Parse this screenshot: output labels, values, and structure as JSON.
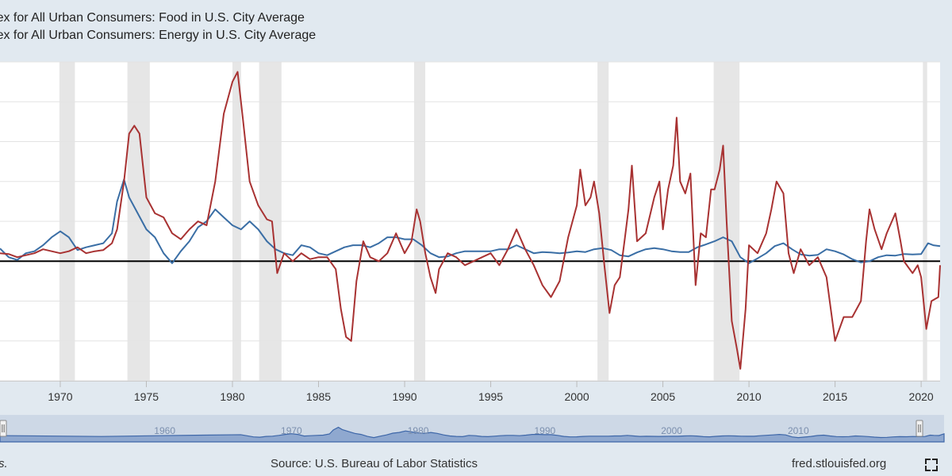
{
  "legend": {
    "food": "ce Index for All Urban Consumers: Food in U.S. City Average",
    "energy": "ce Index for All Urban Consumers: Energy in U.S. City Average"
  },
  "footer": {
    "left_text": "ions.",
    "source": "Source: U.S. Bureau of Labor Statistics",
    "site": "fred.stlouisfed.org"
  },
  "colors": {
    "food": "#3a6ea5",
    "energy": "#a83232",
    "recession": "#e6e6e6",
    "zero_line": "#000000",
    "navigator_fill": "#8fa8cf",
    "navigator_line": "#3d66a8"
  },
  "icons": {
    "fullscreen": "fullscreen-icon"
  },
  "chart_data": {
    "type": "line",
    "x_ticks": [
      1970,
      1975,
      1980,
      1985,
      1990,
      1995,
      2000,
      2005,
      2010,
      2015,
      2020
    ],
    "navigator_ticks": [
      "1960",
      "1970",
      "1980",
      "1990",
      "2000",
      "2010"
    ],
    "xlim": [
      1966.5,
      2021.1
    ],
    "grid": true,
    "recessions": [
      [
        1969.95,
        1970.85
      ],
      [
        1973.9,
        1975.2
      ],
      [
        1980.0,
        1980.5
      ],
      [
        1981.55,
        1982.85
      ],
      [
        1990.55,
        1991.2
      ],
      [
        2001.2,
        2001.85
      ],
      [
        2007.95,
        2009.45
      ],
      [
        2020.1,
        2020.35
      ]
    ],
    "series": [
      {
        "name": "Food",
        "points": [
          [
            1966.5,
            3.2
          ],
          [
            1967.0,
            1.0
          ],
          [
            1967.5,
            0.3
          ],
          [
            1968.0,
            2.0
          ],
          [
            1968.5,
            2.5
          ],
          [
            1969.0,
            4.0
          ],
          [
            1969.5,
            6.0
          ],
          [
            1970.0,
            7.5
          ],
          [
            1970.5,
            6.0
          ],
          [
            1971.0,
            2.8
          ],
          [
            1971.5,
            3.5
          ],
          [
            1972.0,
            4.0
          ],
          [
            1972.5,
            4.5
          ],
          [
            1973.0,
            7.0
          ],
          [
            1973.3,
            15.0
          ],
          [
            1973.7,
            20.5
          ],
          [
            1974.0,
            16.0
          ],
          [
            1974.5,
            12.0
          ],
          [
            1975.0,
            8.0
          ],
          [
            1975.5,
            6.0
          ],
          [
            1976.0,
            2.0
          ],
          [
            1976.5,
            -0.5
          ],
          [
            1977.0,
            2.5
          ],
          [
            1977.5,
            5.0
          ],
          [
            1978.0,
            8.5
          ],
          [
            1978.5,
            10.0
          ],
          [
            1979.0,
            13.0
          ],
          [
            1979.5,
            11.0
          ],
          [
            1980.0,
            9.0
          ],
          [
            1980.5,
            8.0
          ],
          [
            1981.0,
            10.0
          ],
          [
            1981.5,
            8.0
          ],
          [
            1982.0,
            5.0
          ],
          [
            1982.5,
            3.0
          ],
          [
            1983.0,
            2.0
          ],
          [
            1983.5,
            1.5
          ],
          [
            1984.0,
            4.0
          ],
          [
            1984.5,
            3.5
          ],
          [
            1985.0,
            2.0
          ],
          [
            1985.5,
            1.5
          ],
          [
            1986.0,
            2.5
          ],
          [
            1986.5,
            3.5
          ],
          [
            1987.0,
            4.0
          ],
          [
            1987.5,
            4.0
          ],
          [
            1988.0,
            3.5
          ],
          [
            1988.5,
            4.5
          ],
          [
            1989.0,
            6.0
          ],
          [
            1989.5,
            6.0
          ],
          [
            1990.0,
            5.5
          ],
          [
            1990.5,
            5.5
          ],
          [
            1991.0,
            4.0
          ],
          [
            1991.5,
            2.0
          ],
          [
            1992.0,
            1.0
          ],
          [
            1992.5,
            1.2
          ],
          [
            1993.0,
            2.0
          ],
          [
            1993.5,
            2.5
          ],
          [
            1994.0,
            2.5
          ],
          [
            1994.5,
            2.5
          ],
          [
            1995.0,
            2.5
          ],
          [
            1995.5,
            3.0
          ],
          [
            1996.0,
            3.0
          ],
          [
            1996.5,
            4.0
          ],
          [
            1997.0,
            3.0
          ],
          [
            1997.5,
            2.0
          ],
          [
            1998.0,
            2.3
          ],
          [
            1998.5,
            2.2
          ],
          [
            1999.0,
            2.0
          ],
          [
            1999.5,
            2.2
          ],
          [
            2000.0,
            2.5
          ],
          [
            2000.5,
            2.3
          ],
          [
            2001.0,
            3.0
          ],
          [
            2001.5,
            3.3
          ],
          [
            2002.0,
            2.8
          ],
          [
            2002.5,
            1.5
          ],
          [
            2003.0,
            1.2
          ],
          [
            2003.5,
            2.2
          ],
          [
            2004.0,
            3.0
          ],
          [
            2004.5,
            3.3
          ],
          [
            2005.0,
            3.0
          ],
          [
            2005.5,
            2.5
          ],
          [
            2006.0,
            2.3
          ],
          [
            2006.5,
            2.3
          ],
          [
            2007.0,
            3.5
          ],
          [
            2007.5,
            4.2
          ],
          [
            2008.0,
            5.0
          ],
          [
            2008.5,
            6.0
          ],
          [
            2009.0,
            5.0
          ],
          [
            2009.5,
            1.0
          ],
          [
            2010.0,
            -0.5
          ],
          [
            2010.5,
            0.7
          ],
          [
            2011.0,
            2.0
          ],
          [
            2011.5,
            3.8
          ],
          [
            2012.0,
            4.5
          ],
          [
            2012.5,
            3.0
          ],
          [
            2013.0,
            1.7
          ],
          [
            2013.5,
            1.4
          ],
          [
            2014.0,
            1.6
          ],
          [
            2014.5,
            3.0
          ],
          [
            2015.0,
            2.5
          ],
          [
            2015.5,
            1.7
          ],
          [
            2016.0,
            0.5
          ],
          [
            2016.5,
            -0.3
          ],
          [
            2017.0,
            0.0
          ],
          [
            2017.5,
            1.0
          ],
          [
            2018.0,
            1.5
          ],
          [
            2018.5,
            1.4
          ],
          [
            2019.0,
            1.8
          ],
          [
            2019.5,
            1.7
          ],
          [
            2020.0,
            1.8
          ],
          [
            2020.4,
            4.5
          ],
          [
            2020.7,
            4.0
          ],
          [
            2021.1,
            3.8
          ]
        ]
      },
      {
        "name": "Energy",
        "points": [
          [
            1966.5,
            2.0
          ],
          [
            1967.0,
            1.8
          ],
          [
            1967.5,
            1.0
          ],
          [
            1968.0,
            1.5
          ],
          [
            1968.5,
            2.0
          ],
          [
            1969.0,
            3.0
          ],
          [
            1969.5,
            2.5
          ],
          [
            1970.0,
            2.0
          ],
          [
            1970.5,
            2.5
          ],
          [
            1971.0,
            3.5
          ],
          [
            1971.5,
            2.0
          ],
          [
            1972.0,
            2.5
          ],
          [
            1972.5,
            2.8
          ],
          [
            1973.0,
            4.5
          ],
          [
            1973.3,
            8.0
          ],
          [
            1973.7,
            20.0
          ],
          [
            1974.0,
            32.0
          ],
          [
            1974.3,
            34.0
          ],
          [
            1974.6,
            32.0
          ],
          [
            1975.0,
            16.0
          ],
          [
            1975.5,
            12.0
          ],
          [
            1976.0,
            11.0
          ],
          [
            1976.5,
            7.0
          ],
          [
            1977.0,
            5.5
          ],
          [
            1977.5,
            8.0
          ],
          [
            1978.0,
            10.0
          ],
          [
            1978.5,
            9.0
          ],
          [
            1979.0,
            20.0
          ],
          [
            1979.5,
            37.0
          ],
          [
            1980.0,
            45.0
          ],
          [
            1980.3,
            47.5
          ],
          [
            1980.6,
            36.0
          ],
          [
            1981.0,
            20.0
          ],
          [
            1981.5,
            14.0
          ],
          [
            1982.0,
            10.5
          ],
          [
            1982.3,
            10.0
          ],
          [
            1982.6,
            -3.0
          ],
          [
            1983.0,
            2.0
          ],
          [
            1983.5,
            0.0
          ],
          [
            1984.0,
            2.0
          ],
          [
            1984.5,
            0.5
          ],
          [
            1985.0,
            1.0
          ],
          [
            1985.5,
            1.0
          ],
          [
            1986.0,
            -2.0
          ],
          [
            1986.3,
            -12.0
          ],
          [
            1986.6,
            -19.0
          ],
          [
            1986.9,
            -20.0
          ],
          [
            1987.2,
            -5.0
          ],
          [
            1987.6,
            5.0
          ],
          [
            1988.0,
            1.0
          ],
          [
            1988.5,
            0.0
          ],
          [
            1989.0,
            2.0
          ],
          [
            1989.5,
            7.0
          ],
          [
            1990.0,
            2.0
          ],
          [
            1990.4,
            5.0
          ],
          [
            1990.7,
            13.0
          ],
          [
            1990.9,
            10.0
          ],
          [
            1991.2,
            2.0
          ],
          [
            1991.5,
            -4.0
          ],
          [
            1991.8,
            -8.0
          ],
          [
            1992.0,
            -2.0
          ],
          [
            1992.5,
            2.0
          ],
          [
            1993.0,
            1.0
          ],
          [
            1993.5,
            -1.0
          ],
          [
            1994.0,
            0.0
          ],
          [
            1994.5,
            1.0
          ],
          [
            1995.0,
            2.0
          ],
          [
            1995.5,
            -1.0
          ],
          [
            1996.0,
            3.0
          ],
          [
            1996.5,
            8.0
          ],
          [
            1997.0,
            3.0
          ],
          [
            1997.5,
            -1.0
          ],
          [
            1998.0,
            -6.0
          ],
          [
            1998.5,
            -9.0
          ],
          [
            1999.0,
            -5.0
          ],
          [
            1999.5,
            6.0
          ],
          [
            2000.0,
            14.0
          ],
          [
            2000.2,
            23.0
          ],
          [
            2000.5,
            14.0
          ],
          [
            2000.8,
            16.0
          ],
          [
            2001.0,
            20.0
          ],
          [
            2001.3,
            12.0
          ],
          [
            2001.6,
            -1.0
          ],
          [
            2001.9,
            -13.0
          ],
          [
            2002.2,
            -6.0
          ],
          [
            2002.5,
            -4.0
          ],
          [
            2002.8,
            6.0
          ],
          [
            2003.0,
            13.0
          ],
          [
            2003.2,
            24.0
          ],
          [
            2003.5,
            5.0
          ],
          [
            2004.0,
            7.0
          ],
          [
            2004.5,
            16.0
          ],
          [
            2004.8,
            20.0
          ],
          [
            2005.0,
            8.0
          ],
          [
            2005.3,
            18.0
          ],
          [
            2005.6,
            24.0
          ],
          [
            2005.8,
            36.0
          ],
          [
            2006.0,
            20.0
          ],
          [
            2006.3,
            17.0
          ],
          [
            2006.6,
            22.0
          ],
          [
            2006.9,
            -6.0
          ],
          [
            2007.2,
            7.0
          ],
          [
            2007.5,
            6.0
          ],
          [
            2007.8,
            18.0
          ],
          [
            2008.0,
            18.0
          ],
          [
            2008.3,
            23.0
          ],
          [
            2008.5,
            29.0
          ],
          [
            2008.7,
            10.0
          ],
          [
            2009.0,
            -15.0
          ],
          [
            2009.3,
            -22.0
          ],
          [
            2009.5,
            -27.0
          ],
          [
            2009.8,
            -12.0
          ],
          [
            2010.0,
            4.0
          ],
          [
            2010.5,
            2.0
          ],
          [
            2011.0,
            7.0
          ],
          [
            2011.3,
            13.0
          ],
          [
            2011.6,
            20.0
          ],
          [
            2012.0,
            17.0
          ],
          [
            2012.3,
            2.0
          ],
          [
            2012.6,
            -3.0
          ],
          [
            2013.0,
            3.0
          ],
          [
            2013.5,
            -1.0
          ],
          [
            2014.0,
            1.0
          ],
          [
            2014.5,
            -4.0
          ],
          [
            2015.0,
            -20.0
          ],
          [
            2015.5,
            -14.0
          ],
          [
            2016.0,
            -14.0
          ],
          [
            2016.5,
            -10.0
          ],
          [
            2016.8,
            5.0
          ],
          [
            2017.0,
            13.0
          ],
          [
            2017.3,
            8.0
          ],
          [
            2017.7,
            3.0
          ],
          [
            2018.0,
            7.0
          ],
          [
            2018.5,
            12.0
          ],
          [
            2018.8,
            5.0
          ],
          [
            2019.0,
            0.0
          ],
          [
            2019.5,
            -3.0
          ],
          [
            2019.8,
            -1.0
          ],
          [
            2020.0,
            -4.0
          ],
          [
            2020.3,
            -17.0
          ],
          [
            2020.6,
            -10.0
          ],
          [
            2021.0,
            -9.0
          ],
          [
            2021.1,
            -1.0
          ]
        ]
      }
    ]
  }
}
